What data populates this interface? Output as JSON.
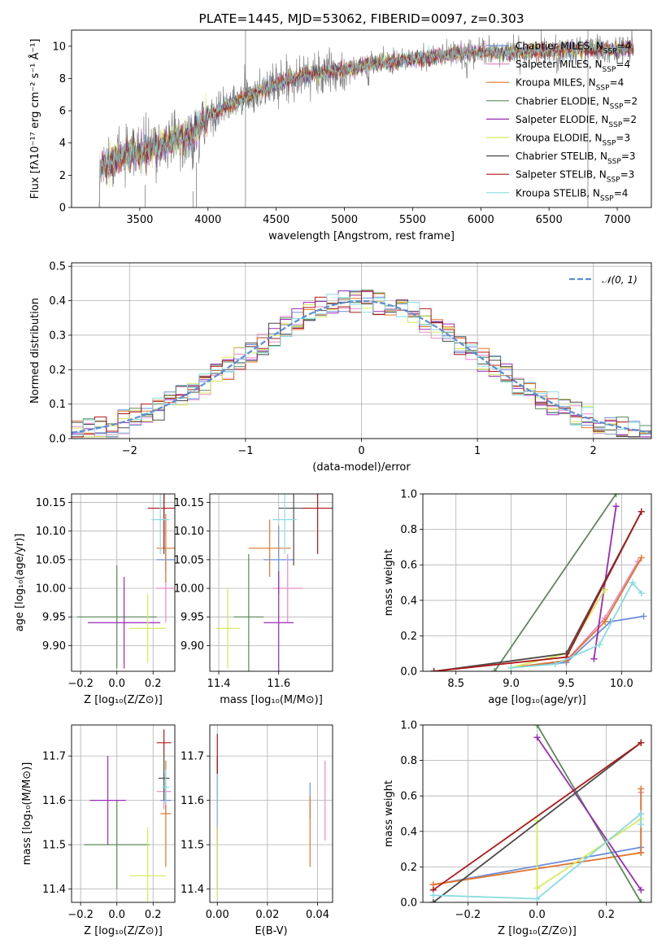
{
  "colors": {
    "Chabrier MILES": "#6b8fd8",
    "Salpeter MILES": "#e58cc8",
    "Kroupa MILES": "#e0772a",
    "Chabrier ELODIE": "#5a8a5a",
    "Salpeter ELODIE": "#9a2ab8",
    "Kroupa ELODIE": "#d6ea5a",
    "Chabrier STELIB": "#4a4a4a",
    "Salpeter STELIB": "#b01818",
    "Kroupa STELIB": "#88dce0",
    "normal": "#5a8fd6",
    "spectrum": "#808080"
  },
  "chart_data": [
    {
      "id": "spectrum",
      "type": "line",
      "title": "PLATE=1445, MJD=53062, FIBERID=0097, z=0.303",
      "xlabel": "wavelength [Angstrom, rest frame]",
      "ylabel": "Flux [fλ10⁻¹⁷ erg cm⁻² s⁻¹ Å⁻¹]",
      "xlim": [
        3000,
        7250
      ],
      "ylim": [
        0,
        11
      ],
      "xticks": [
        "3500",
        "4000",
        "4500",
        "5000",
        "5500",
        "6000",
        "6500",
        "7000"
      ],
      "yticks": [
        "0",
        "2",
        "4",
        "6",
        "8",
        "10"
      ],
      "grid": false,
      "legend_position": "top-right",
      "legend": [
        {
          "base": "Chabrier MILES, N",
          "sub": "SSP",
          "tail": "=4"
        },
        {
          "base": "Salpeter MILES, N",
          "sub": "SSP",
          "tail": "=4"
        },
        {
          "base": "Kroupa MILES, N",
          "sub": "SSP",
          "tail": "=4"
        },
        {
          "base": "Chabrier ELODIE, N",
          "sub": "SSP",
          "tail": "=2"
        },
        {
          "base": "Salpeter ELODIE, N",
          "sub": "SSP",
          "tail": "=2"
        },
        {
          "base": "Kroupa ELODIE, N",
          "sub": "SSP",
          "tail": "=3"
        },
        {
          "base": "Chabrier STELIB, N",
          "sub": "SSP",
          "tail": "=3"
        },
        {
          "base": "Salpeter STELIB, N",
          "sub": "SSP",
          "tail": "=3"
        },
        {
          "base": "Kroupa STELIB, N",
          "sub": "SSP",
          "tail": "=4"
        }
      ],
      "continuum": {
        "wavelength": [
          3200,
          3300,
          3500,
          3700,
          3900,
          4000,
          4200,
          4400,
          4600,
          4800,
          5000,
          5200,
          5400,
          5600,
          5800,
          6000,
          6200,
          6400,
          6600,
          6800,
          7000,
          7100
        ],
        "flux": [
          2.4,
          2.9,
          3.4,
          4.0,
          4.6,
          5.7,
          6.5,
          7.3,
          8.0,
          8.3,
          8.5,
          8.9,
          9.1,
          9.3,
          9.5,
          9.6,
          9.6,
          9.7,
          9.8,
          9.8,
          9.8,
          9.9
        ]
      }
    },
    {
      "id": "residuals",
      "type": "line",
      "xlabel": "(data-model)/error",
      "ylabel": "Normed distribution",
      "xlim": [
        -2.5,
        2.5
      ],
      "ylim": [
        0,
        0.51
      ],
      "xticks": [
        "−2",
        "−1",
        "0",
        "1",
        "2"
      ],
      "yticks": [
        "0.0",
        "0.1",
        "0.2",
        "0.3",
        "0.4",
        "0.5"
      ],
      "grid": true,
      "legend_position": "top-right",
      "normal_label": "𝒩(0, 1)",
      "bin_edges_start": -2.5,
      "bin_width": 0.1
    },
    {
      "id": "age_vs_Z",
      "type": "scatter",
      "xlabel": "Z [log₁₀(Z/Z⊙)]",
      "ylabel": "age  [log₁₀(age/yr)]",
      "xlim": [
        -0.25,
        0.32
      ],
      "ylim": [
        9.855,
        10.165
      ],
      "xticks": [
        "−0.2",
        "0.0",
        "0.2"
      ],
      "yticks": [
        "9.90",
        "9.95",
        "10.00",
        "10.05",
        "10.10",
        "10.15"
      ],
      "grid": true,
      "points": [
        {
          "model": "Chabrier MILES",
          "x": 0.27,
          "xerr": 0.05,
          "y": 10.05,
          "yerr": 0.02
        },
        {
          "model": "Salpeter MILES",
          "x": 0.27,
          "xerr": 0.05,
          "y": 10.0,
          "yerr": 0.06
        },
        {
          "model": "Kroupa MILES",
          "x": 0.27,
          "xerr": 0.05,
          "y": 10.07,
          "yerr": 0.06
        },
        {
          "model": "Chabrier ELODIE",
          "x": 0.0,
          "xerr": 0.22,
          "y": 9.95,
          "yerr": 0.09
        },
        {
          "model": "Salpeter ELODIE",
          "x": 0.04,
          "xerr": 0.2,
          "y": 9.94,
          "yerr": 0.08
        },
        {
          "model": "Kroupa ELODIE",
          "x": 0.17,
          "xerr": 0.1,
          "y": 9.93,
          "yerr": 0.06
        },
        {
          "model": "Chabrier STELIB",
          "x": 0.26,
          "xerr": 0.01,
          "y": 10.14,
          "yerr": 0.08
        },
        {
          "model": "Salpeter STELIB",
          "x": 0.26,
          "xerr": 0.09,
          "y": 10.14,
          "yerr": 0.07
        },
        {
          "model": "Kroupa STELIB",
          "x": 0.24,
          "xerr": 0.05,
          "y": 10.12,
          "yerr": 0.06
        }
      ]
    },
    {
      "id": "age_vs_mass",
      "type": "scatter",
      "xlabel": "mass [log₁₀(M/M⊙)]",
      "xlim": [
        11.37,
        11.78
      ],
      "ylim": [
        9.855,
        10.165
      ],
      "xticks": [
        "11.4",
        "11.6"
      ],
      "yticks": [
        "9.90",
        "9.95",
        "10.00",
        "10.05",
        "10.10",
        "10.15"
      ],
      "grid": true,
      "points": [
        {
          "model": "Chabrier MILES",
          "x": 11.6,
          "xerr": 0.05,
          "y": 10.05,
          "yerr": 0.06
        },
        {
          "model": "Salpeter MILES",
          "x": 11.63,
          "xerr": 0.05,
          "y": 10.0,
          "yerr": 0.06
        },
        {
          "model": "Kroupa MILES",
          "x": 11.57,
          "xerr": 0.07,
          "y": 10.07,
          "yerr": 0.05
        },
        {
          "model": "Chabrier ELODIE",
          "x": 11.5,
          "xerr": 0.05,
          "y": 9.95,
          "yerr": 0.11
        },
        {
          "model": "Salpeter ELODIE",
          "x": 11.6,
          "xerr": 0.05,
          "y": 9.94,
          "yerr": 0.09
        },
        {
          "model": "Kroupa ELODIE",
          "x": 11.43,
          "xerr": 0.04,
          "y": 9.93,
          "yerr": 0.07
        },
        {
          "model": "Chabrier STELIB",
          "x": 11.65,
          "xerr": 0.05,
          "y": 10.14,
          "yerr": 0.1
        },
        {
          "model": "Salpeter STELIB",
          "x": 11.73,
          "xerr": 0.05,
          "y": 10.14,
          "yerr": 0.08
        },
        {
          "model": "Kroupa STELIB",
          "x": 11.62,
          "xerr": 0.04,
          "y": 10.12,
          "yerr": 0.06
        }
      ]
    },
    {
      "id": "weight_vs_age",
      "type": "line",
      "xlabel": "age  [log₁₀(age/yr)]",
      "ylabel": "mass weight",
      "xlim": [
        8.2,
        10.27
      ],
      "ylim": [
        0,
        1
      ],
      "xticks": [
        "8.5",
        "9.0",
        "9.5",
        "10.0"
      ],
      "yticks": [
        "0.0",
        "0.2",
        "0.4",
        "0.6",
        "0.8",
        "1.0"
      ],
      "grid": true,
      "series": [
        {
          "model": "Chabrier MILES",
          "x": [
            9.0,
            9.5,
            9.9,
            10.2
          ],
          "y": [
            0.02,
            0.05,
            0.28,
            0.31
          ]
        },
        {
          "model": "Salpeter MILES",
          "x": [
            9.0,
            9.5,
            9.85,
            10.15
          ],
          "y": [
            0.02,
            0.06,
            0.3,
            0.62
          ]
        },
        {
          "model": "Kroupa MILES",
          "x": [
            9.0,
            9.5,
            9.85,
            10.18
          ],
          "y": [
            0.02,
            0.06,
            0.28,
            0.64
          ]
        },
        {
          "model": "Chabrier ELODIE",
          "x": [
            8.85,
            9.95
          ],
          "y": [
            0.0,
            1.0
          ]
        },
        {
          "model": "Salpeter ELODIE",
          "x": [
            9.75,
            9.95
          ],
          "y": [
            0.07,
            0.93
          ]
        },
        {
          "model": "Kroupa ELODIE",
          "x": [
            9.0,
            9.5,
            9.85
          ],
          "y": [
            0.02,
            0.1,
            0.46
          ]
        },
        {
          "model": "Chabrier STELIB",
          "x": [
            8.3,
            9.5,
            10.18
          ],
          "y": [
            0.0,
            0.1,
            0.9
          ]
        },
        {
          "model": "Salpeter STELIB",
          "x": [
            8.3,
            9.5,
            10.18
          ],
          "y": [
            0.0,
            0.08,
            0.9
          ]
        },
        {
          "model": "Kroupa STELIB",
          "x": [
            9.0,
            9.4,
            9.8,
            10.1,
            10.18
          ],
          "y": [
            0.02,
            0.04,
            0.15,
            0.5,
            0.44
          ]
        }
      ]
    },
    {
      "id": "mass_vs_Z",
      "type": "scatter",
      "xlabel": "Z [log₁₀(Z/Z⊙)]",
      "ylabel": "mass [log₁₀(M/M⊙)]",
      "xlim": [
        -0.25,
        0.32
      ],
      "ylim": [
        11.37,
        11.77
      ],
      "xticks": [
        "−0.2",
        "0.0",
        "0.2"
      ],
      "yticks": [
        "11.4",
        "11.5",
        "11.6",
        "11.7"
      ],
      "grid": true,
      "points": [
        {
          "model": "Chabrier MILES",
          "x": 0.27,
          "xerr": 0.03,
          "y": 11.6,
          "yerr": 0.03
        },
        {
          "model": "Salpeter MILES",
          "x": 0.26,
          "xerr": 0.04,
          "y": 11.62,
          "yerr": 0.04
        },
        {
          "model": "Kroupa MILES",
          "x": 0.27,
          "xerr": 0.03,
          "y": 11.57,
          "yerr": 0.12
        },
        {
          "model": "Chabrier ELODIE",
          "x": 0.0,
          "xerr": 0.18,
          "y": 11.5,
          "yerr": 0.1
        },
        {
          "model": "Salpeter ELODIE",
          "x": -0.05,
          "xerr": 0.1,
          "y": 11.6,
          "yerr": 0.1
        },
        {
          "model": "Kroupa ELODIE",
          "x": 0.17,
          "xerr": 0.1,
          "y": 11.43,
          "yerr": 0.11
        },
        {
          "model": "Chabrier STELIB",
          "x": 0.26,
          "xerr": 0.03,
          "y": 11.65,
          "yerr": 0.05
        },
        {
          "model": "Salpeter STELIB",
          "x": 0.26,
          "xerr": 0.04,
          "y": 11.73,
          "yerr": 0.03
        },
        {
          "model": "Kroupa STELIB",
          "x": 0.27,
          "xerr": 0.02,
          "y": 11.63,
          "yerr": 0.04
        }
      ]
    },
    {
      "id": "mass_vs_ebv",
      "type": "scatter",
      "xlabel": "E(B-V)",
      "xlim": [
        -0.003,
        0.046
      ],
      "ylim": [
        11.37,
        11.77
      ],
      "xticks": [
        "0.00",
        "0.02",
        "0.04"
      ],
      "yticks": [
        "11.4",
        "11.5",
        "11.6",
        "11.7"
      ],
      "grid": true,
      "points": [
        {
          "model": "Chabrier MILES",
          "x": 0.037,
          "y": 11.6,
          "yerr": 0.04
        },
        {
          "model": "Salpeter MILES",
          "x": 0.043,
          "y": 11.6,
          "yerr": 0.09
        },
        {
          "model": "Kroupa MILES",
          "x": 0.037,
          "y": 11.53,
          "yerr": 0.08
        },
        {
          "model": "Chabrier ELODIE",
          "x": 0.0,
          "y": 11.5,
          "yerr": 0.1
        },
        {
          "model": "Salpeter ELODIE",
          "x": 0.0,
          "y": 11.6,
          "yerr": 0.09
        },
        {
          "model": "Kroupa ELODIE",
          "x": 0.0,
          "y": 11.46,
          "yerr": 0.08
        },
        {
          "model": "Chabrier STELIB",
          "x": 0.0,
          "y": 11.65,
          "yerr": 0.05
        },
        {
          "model": "Salpeter STELIB",
          "x": 0.0,
          "y": 11.7,
          "yerr": 0.05
        },
        {
          "model": "Kroupa STELIB",
          "x": 0.0,
          "y": 11.6,
          "yerr": 0.06
        }
      ]
    },
    {
      "id": "weight_vs_Z",
      "type": "line",
      "xlabel": "Z [log₁₀(Z/Z⊙)]",
      "ylabel": "mass weight",
      "xlim": [
        -0.33,
        0.33
      ],
      "ylim": [
        0,
        1
      ],
      "xticks": [
        "−0.2",
        "0.0",
        "0.2"
      ],
      "yticks": [
        "0.0",
        "0.2",
        "0.4",
        "0.6",
        "0.8",
        "1.0"
      ],
      "grid": true,
      "series": [
        {
          "model": "Chabrier MILES",
          "x": [
            -0.3,
            0.3
          ],
          "y": [
            0.1,
            0.31
          ]
        },
        {
          "model": "Salpeter MILES",
          "x": [
            -0.3,
            0.3,
            0.3
          ],
          "y": [
            0.1,
            0.28,
            0.62
          ]
        },
        {
          "model": "Kroupa MILES",
          "x": [
            -0.3,
            0.3,
            0.3
          ],
          "y": [
            0.1,
            0.28,
            0.64
          ]
        },
        {
          "model": "Chabrier ELODIE",
          "x": [
            0.0,
            0.3
          ],
          "y": [
            1.0,
            0.0
          ]
        },
        {
          "model": "Salpeter ELODIE",
          "x": [
            0.0,
            0.3
          ],
          "y": [
            0.93,
            0.07
          ]
        },
        {
          "model": "Kroupa ELODIE",
          "x": [
            0.0,
            0.0,
            0.3
          ],
          "y": [
            0.46,
            0.08,
            0.47
          ]
        },
        {
          "model": "Chabrier STELIB",
          "x": [
            -0.3,
            0.3
          ],
          "y": [
            0.0,
            0.9
          ]
        },
        {
          "model": "Salpeter STELIB",
          "x": [
            -0.3,
            0.3
          ],
          "y": [
            0.07,
            0.9
          ]
        },
        {
          "model": "Kroupa STELIB",
          "x": [
            -0.3,
            0.0,
            0.3,
            0.3
          ],
          "y": [
            0.04,
            0.02,
            0.5,
            0.44
          ]
        }
      ]
    }
  ]
}
